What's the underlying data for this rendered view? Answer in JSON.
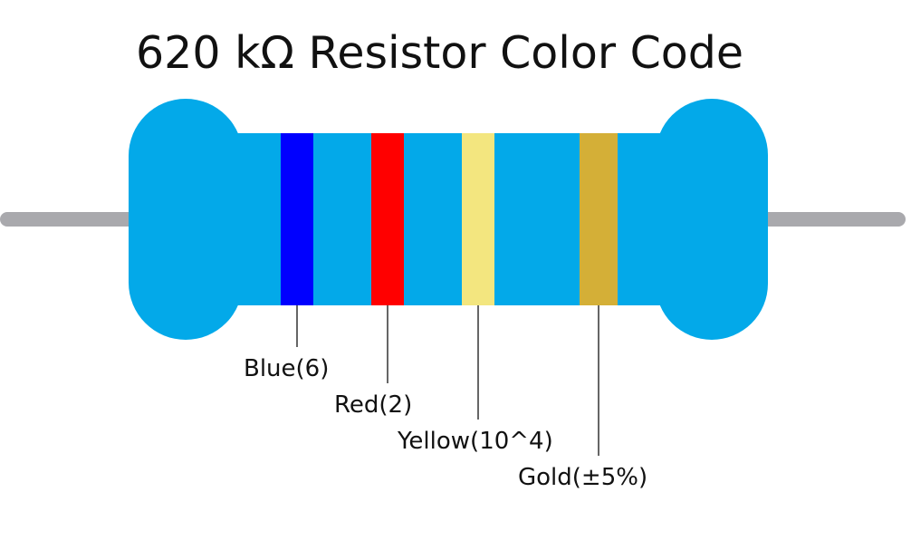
{
  "title": "620 kΩ Resistor Color Code",
  "colors": {
    "body": "#03A9E9",
    "lead": "#A9A9AD",
    "leader_line": "#000000"
  },
  "bands": [
    {
      "name": "blue",
      "color": "#0000FF",
      "label": "Blue(6)"
    },
    {
      "name": "red",
      "color": "#FF0000",
      "label": "Red(2)"
    },
    {
      "name": "yellow",
      "color": "#F3E67F",
      "label": "Yellow(10^4)"
    },
    {
      "name": "gold",
      "color": "#D4AF37",
      "label": "Gold(±5%)"
    }
  ]
}
